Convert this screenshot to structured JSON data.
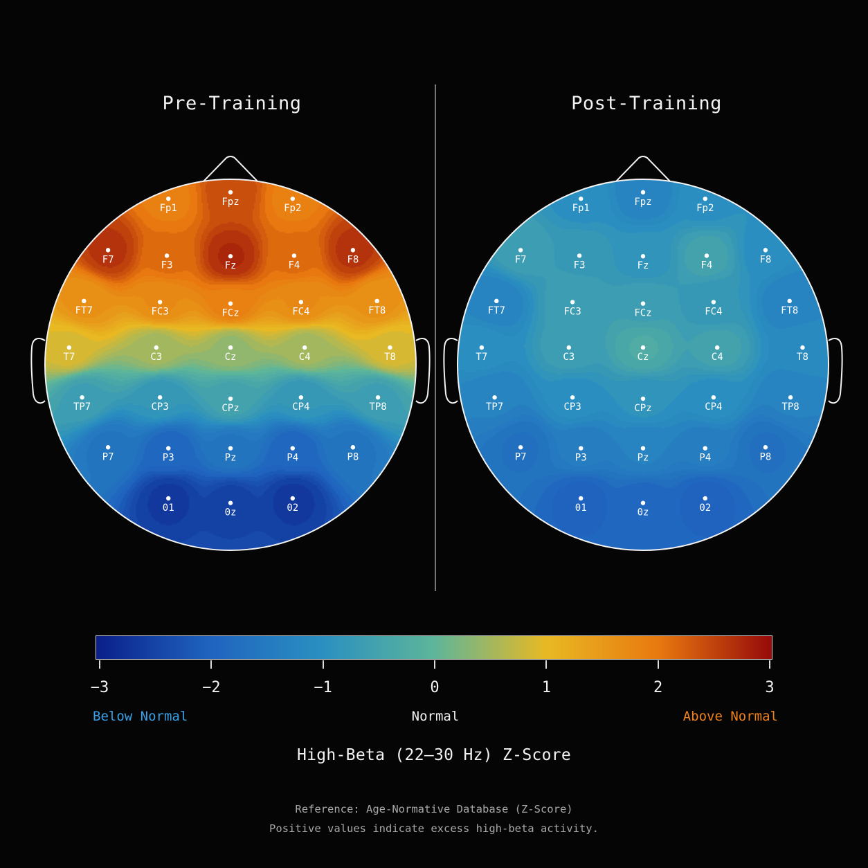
{
  "chart_data": [
    {
      "type": "heatmap",
      "title": "Pre-Training",
      "electrodes": [
        {
          "name": "Fp1",
          "value": 1.9
        },
        {
          "name": "Fpz",
          "value": 2.4
        },
        {
          "name": "Fp2",
          "value": 1.9
        },
        {
          "name": "F7",
          "value": 2.6
        },
        {
          "name": "F3",
          "value": 2.1
        },
        {
          "name": "Fz",
          "value": 2.7
        },
        {
          "name": "F4",
          "value": 2.1
        },
        {
          "name": "F8",
          "value": 2.6
        },
        {
          "name": "FT7",
          "value": 1.6
        },
        {
          "name": "FC3",
          "value": 1.7
        },
        {
          "name": "FCz",
          "value": 1.9
        },
        {
          "name": "FC4",
          "value": 1.7
        },
        {
          "name": "FT8",
          "value": 1.6
        },
        {
          "name": "T7",
          "value": 0.9
        },
        {
          "name": "C3",
          "value": 0.5
        },
        {
          "name": "Cz",
          "value": 0.4
        },
        {
          "name": "C4",
          "value": 0.5
        },
        {
          "name": "T8",
          "value": 0.9
        },
        {
          "name": "TP7",
          "value": -0.6
        },
        {
          "name": "CP3",
          "value": -0.8
        },
        {
          "name": "CPz",
          "value": -0.5
        },
        {
          "name": "CP4",
          "value": -0.8
        },
        {
          "name": "TP8",
          "value": -0.6
        },
        {
          "name": "P7",
          "value": -1.6
        },
        {
          "name": "P3",
          "value": -1.9
        },
        {
          "name": "Pz",
          "value": -1.6
        },
        {
          "name": "P4",
          "value": -1.9
        },
        {
          "name": "P8",
          "value": -1.6
        },
        {
          "name": "O1",
          "value": -2.6
        },
        {
          "name": "Oz",
          "value": -2.5
        },
        {
          "name": "O2",
          "value": -2.6
        }
      ]
    },
    {
      "type": "heatmap",
      "title": "Post-Training",
      "electrodes": [
        {
          "name": "Fp1",
          "value": -1.0
        },
        {
          "name": "Fpz",
          "value": -1.3
        },
        {
          "name": "Fp2",
          "value": -1.0
        },
        {
          "name": "F7",
          "value": -0.6
        },
        {
          "name": "F3",
          "value": -0.7
        },
        {
          "name": "Fz",
          "value": -0.9
        },
        {
          "name": "F4",
          "value": -0.5
        },
        {
          "name": "F8",
          "value": -1.0
        },
        {
          "name": "FT7",
          "value": -1.3
        },
        {
          "name": "FC3",
          "value": -0.6
        },
        {
          "name": "FCz",
          "value": -0.6
        },
        {
          "name": "FC4",
          "value": -0.8
        },
        {
          "name": "FT8",
          "value": -1.3
        },
        {
          "name": "T7",
          "value": -1.0
        },
        {
          "name": "C3",
          "value": -0.6
        },
        {
          "name": "Cz",
          "value": -0.3
        },
        {
          "name": "C4",
          "value": -0.5
        },
        {
          "name": "T8",
          "value": -1.1
        },
        {
          "name": "TP7",
          "value": -1.3
        },
        {
          "name": "CP3",
          "value": -1.0
        },
        {
          "name": "CPz",
          "value": -0.9
        },
        {
          "name": "CP4",
          "value": -1.0
        },
        {
          "name": "TP8",
          "value": -1.3
        },
        {
          "name": "P7",
          "value": -1.7
        },
        {
          "name": "P3",
          "value": -1.4
        },
        {
          "name": "Pz",
          "value": -1.3
        },
        {
          "name": "P4",
          "value": -1.4
        },
        {
          "name": "P8",
          "value": -1.7
        },
        {
          "name": "O1",
          "value": -2.0
        },
        {
          "name": "Oz",
          "value": -1.9
        },
        {
          "name": "O2",
          "value": -2.0
        }
      ]
    }
  ],
  "colorbar": {
    "range": [
      -3,
      3
    ],
    "ticks": [
      "−3",
      "−2",
      "−1",
      "0",
      "1",
      "2",
      "3"
    ],
    "tick_values": [
      -3,
      -2,
      -1,
      0,
      1,
      2,
      3
    ],
    "colors": [
      "#0a1f8a",
      "#1f63bf",
      "#2a8fc0",
      "#5db59a",
      "#e8b923",
      "#e8780f",
      "#960a0a"
    ],
    "below_label": "Below Normal",
    "normal_label": "Normal",
    "above_label": "Above Normal",
    "below_color": "#3aa0e8",
    "above_color": "#f0821e",
    "title": "High-Beta (22–30 Hz) Z-Score"
  },
  "footnote": {
    "line1": "Reference: Age-Normative Database (Z-Score)",
    "line2": "Positive values indicate excess high-beta activity."
  }
}
